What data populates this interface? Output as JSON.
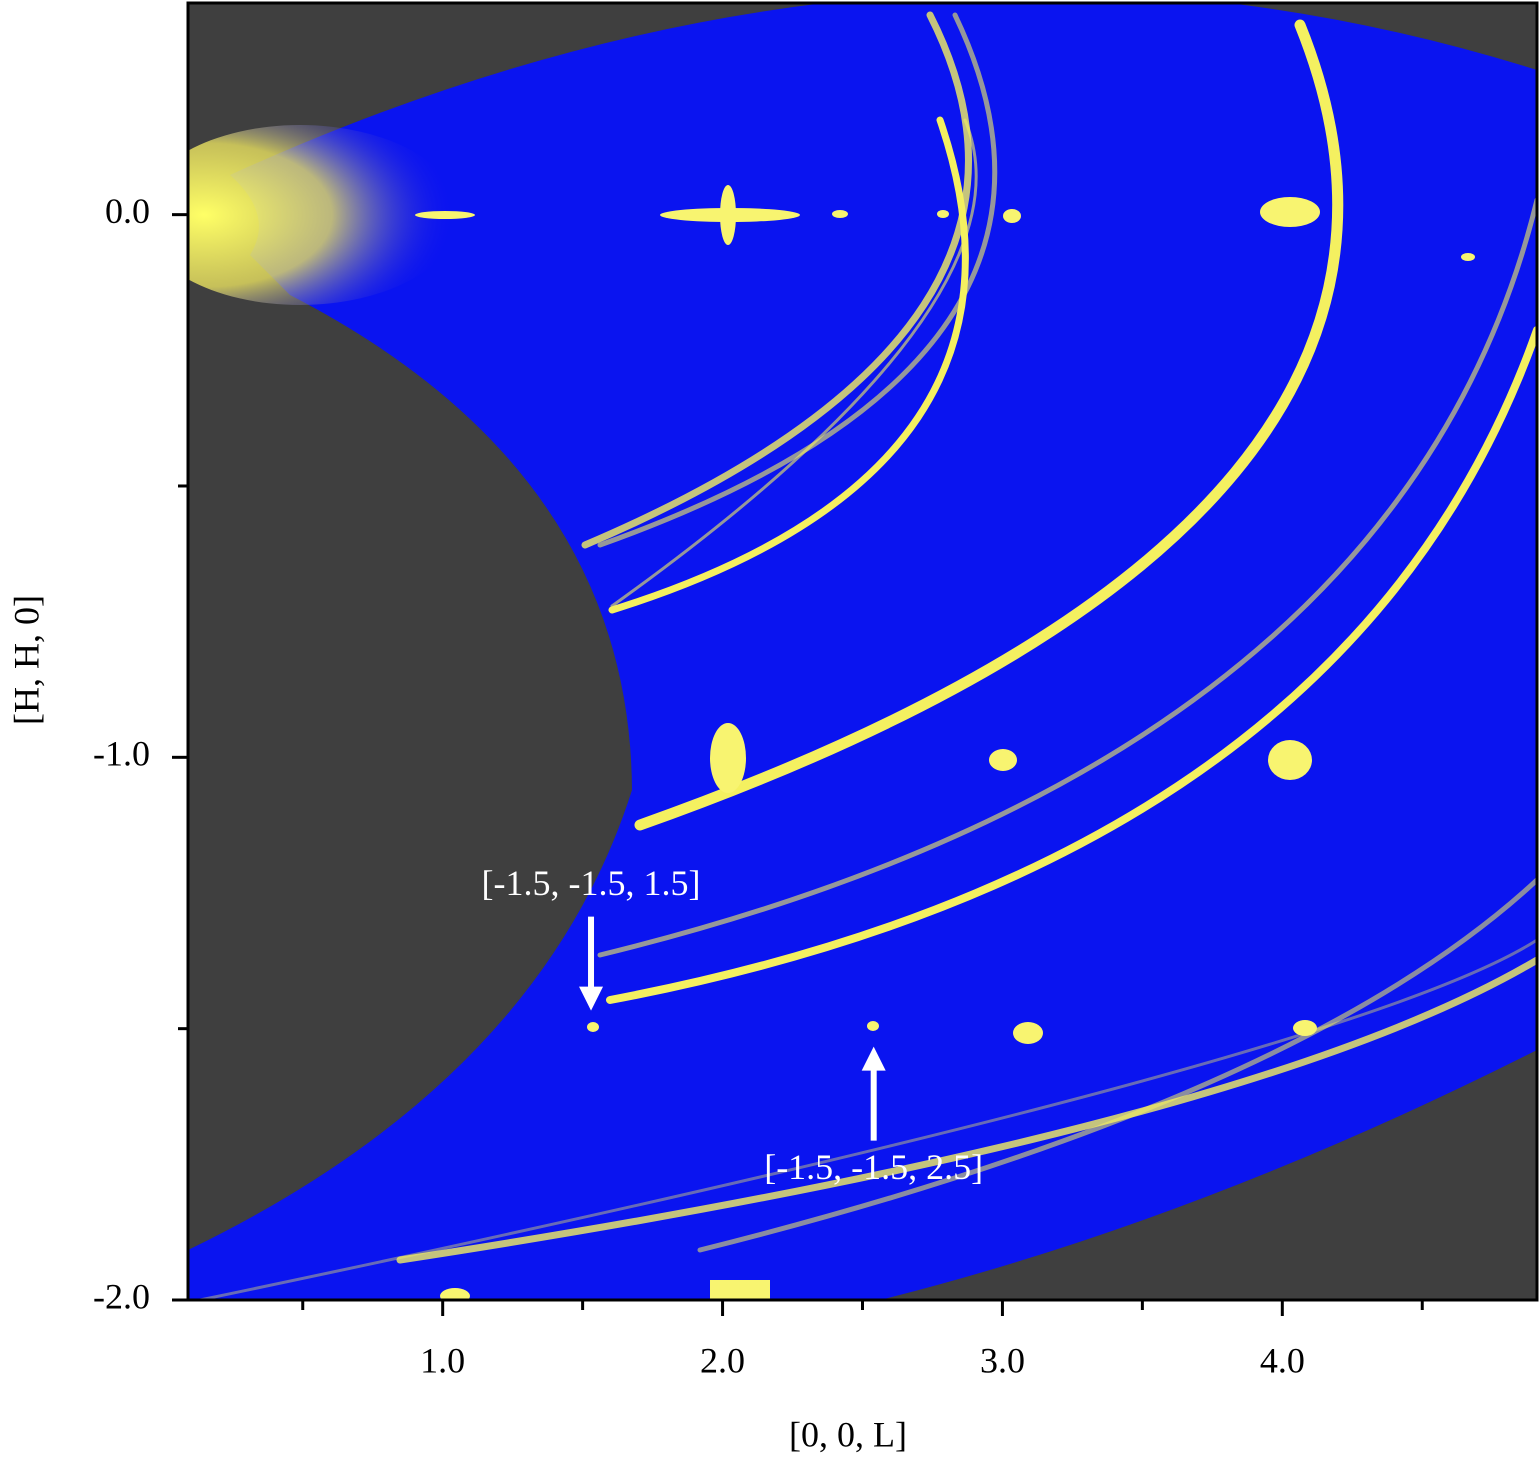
{
  "chart_data": {
    "type": "heatmap",
    "xlabel": "[0, 0, L]",
    "ylabel": "[H, H, 0]",
    "xlim": [
      0.09,
      4.91
    ],
    "ylim": [
      -2.0,
      0.39
    ],
    "xticks": [
      {
        "value": 1,
        "label": "1.0"
      },
      {
        "value": 2,
        "label": "2.0"
      },
      {
        "value": 3,
        "label": "3.0"
      },
      {
        "value": 4,
        "label": "4.0"
      }
    ],
    "xminorticks": [
      0.5,
      1.5,
      2.5,
      3.5,
      4.5
    ],
    "yticks": [
      {
        "value": 0,
        "label": "0.0"
      },
      {
        "value": -1,
        "label": "-1.0"
      },
      {
        "value": -2,
        "label": "-2.0"
      }
    ],
    "yminorticks": [
      -0.5,
      -1.5
    ],
    "annotations": [
      {
        "text": "[-1.5, -1.5, 1.5]",
        "x": 1.53,
        "y": -1.5
      },
      {
        "text": "[-1.5, -1.5, 2.5]",
        "x": 2.54,
        "y": -1.5
      }
    ]
  }
}
